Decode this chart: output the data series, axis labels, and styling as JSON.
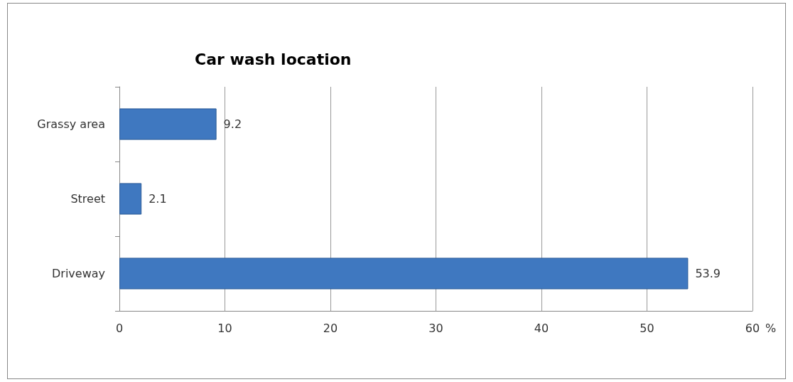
{
  "chart_data": {
    "type": "bar",
    "title": "Car wash location",
    "orientation": "horizontal",
    "xlabel": "%",
    "categories": [
      "Grassy area",
      "Street",
      "Driveway"
    ],
    "values": [
      9.2,
      2.1,
      53.9
    ],
    "color": "#3f78c0",
    "xlim": [
      0,
      60
    ],
    "xticks": [
      0,
      10,
      20,
      30,
      40,
      50,
      60
    ],
    "grid": "x",
    "data_labels": true
  }
}
